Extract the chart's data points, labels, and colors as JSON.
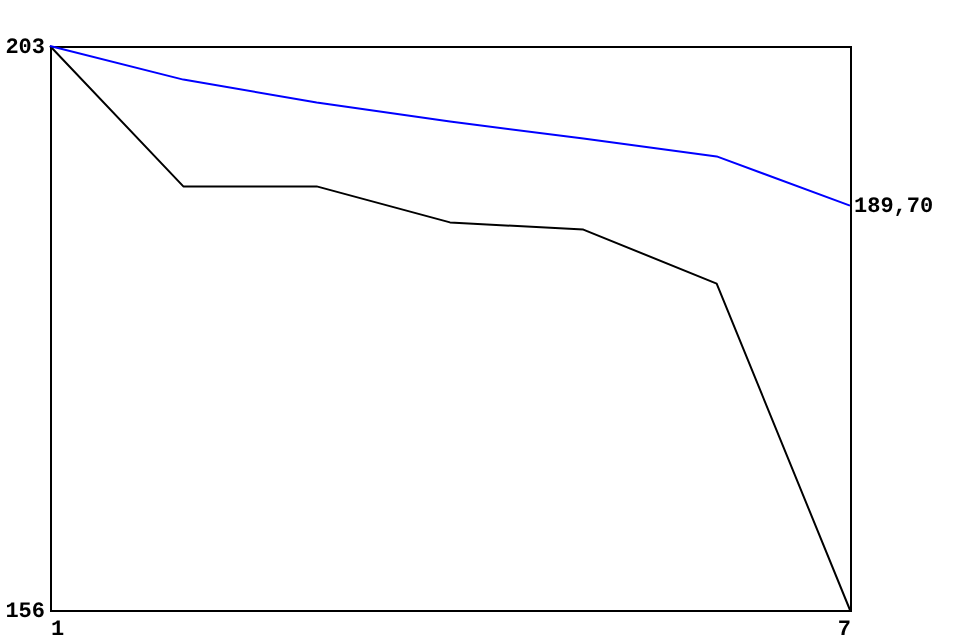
{
  "chart_data": {
    "type": "line",
    "x": [
      1,
      2,
      3,
      4,
      5,
      6,
      7
    ],
    "series": [
      {
        "color": "#000000",
        "values": [
          203,
          191.3,
          191.3,
          188.3,
          187.7,
          183.2,
          156
        ]
      },
      {
        "color": "#0000ff",
        "values": [
          203,
          200.2,
          198.3,
          196.7,
          195.3,
          193.8,
          189.7
        ]
      }
    ],
    "xlim": [
      1,
      7
    ],
    "xticks": [
      {
        "value": 1,
        "label": "1"
      },
      {
        "value": 7,
        "label": "7"
      }
    ],
    "ylim": [
      156,
      203
    ],
    "yticks": [
      156,
      203
    ],
    "annotations": [
      {
        "text": "189,70",
        "x": 7,
        "y": 189.7
      }
    ],
    "grid": false,
    "marker": "none",
    "line_style": "solid"
  }
}
